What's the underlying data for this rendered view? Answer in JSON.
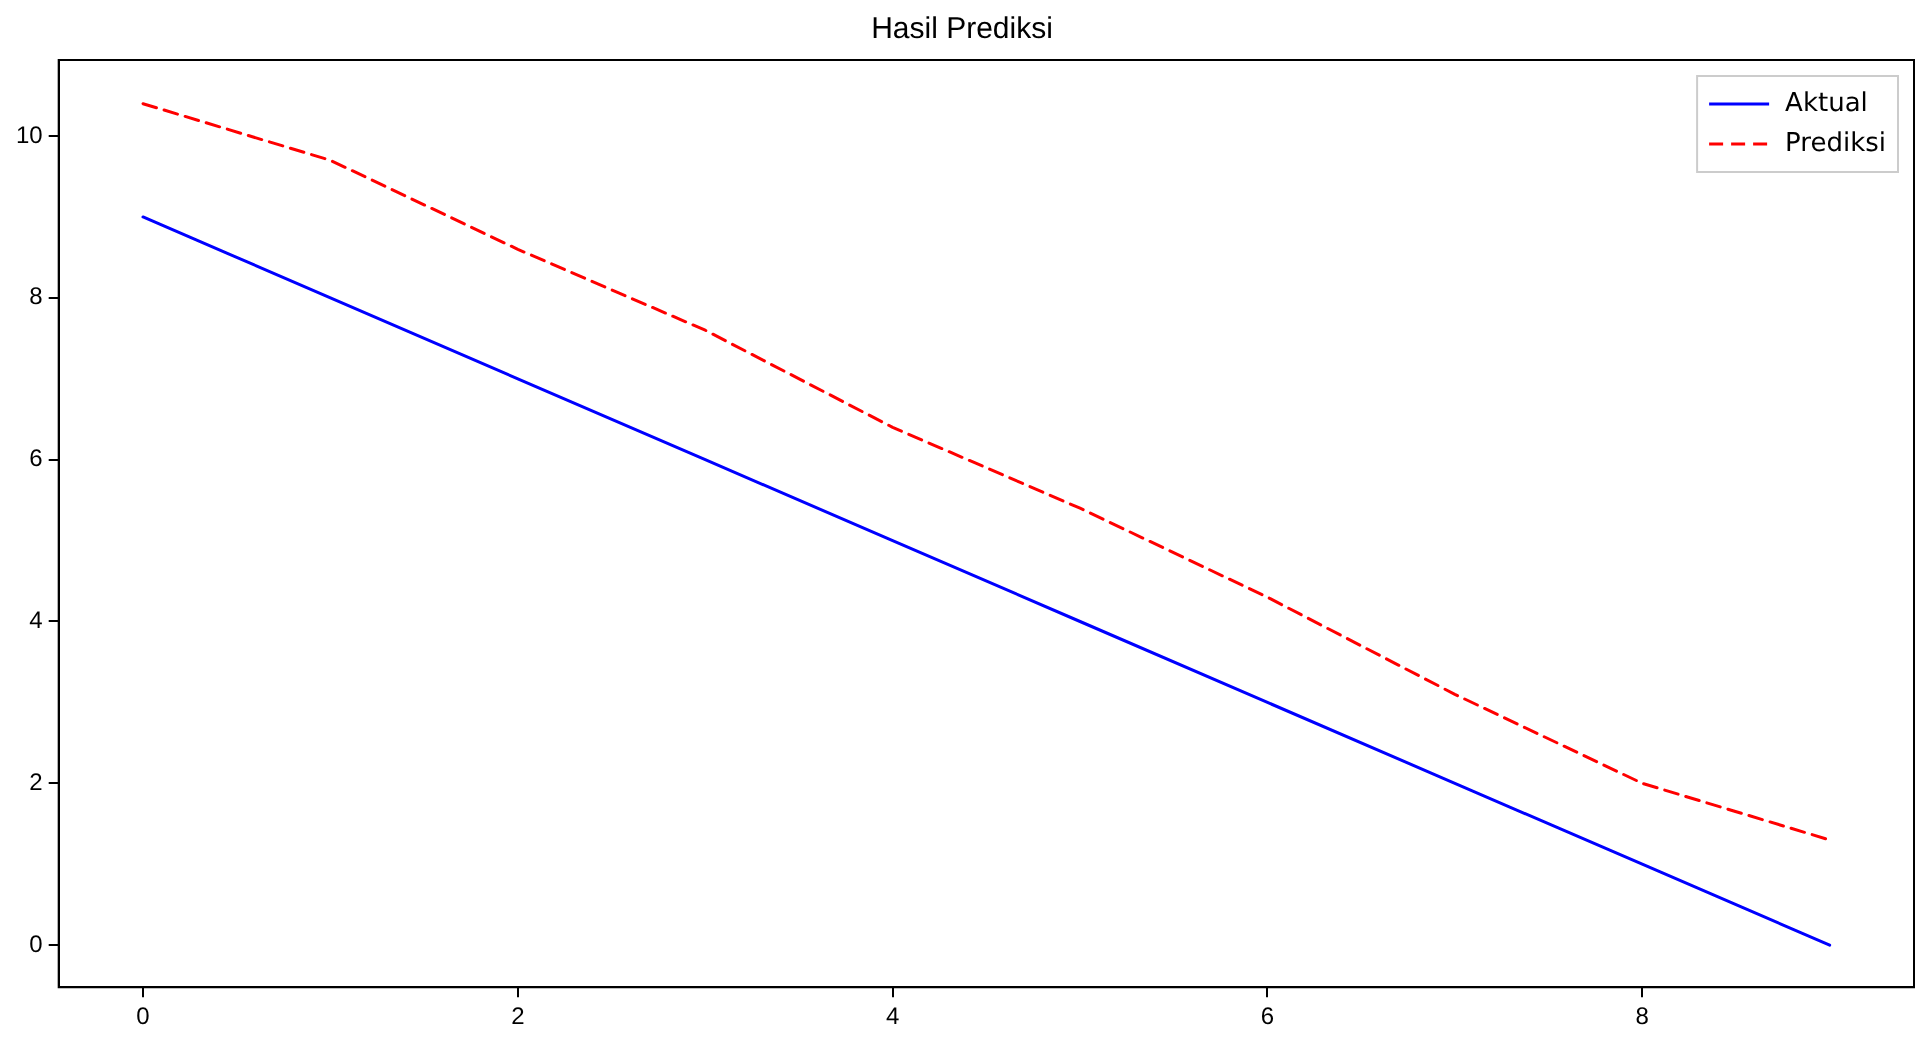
{
  "chart_data": {
    "type": "line",
    "title": "Hasil Prediksi",
    "x": [
      0,
      1,
      2,
      3,
      4,
      5,
      6,
      7,
      8,
      9
    ],
    "series": [
      {
        "name": "Aktual",
        "color": "#0000ff",
        "line_style": "solid",
        "values": [
          9,
          8,
          7,
          6,
          5,
          4,
          3,
          2,
          1,
          0
        ]
      },
      {
        "name": "Prediksi",
        "color": "#ff0000",
        "line_style": "dashed",
        "values": [
          10.4,
          9.7,
          8.6,
          7.6,
          6.4,
          5.4,
          4.3,
          3.1,
          2.0,
          1.3
        ]
      }
    ],
    "xlim": [
      -0.45,
      9.45
    ],
    "xticks": [
      0,
      2,
      4,
      6,
      8
    ],
    "ylim": [
      -0.52,
      10.94
    ],
    "yticks": [
      0,
      2,
      4,
      6,
      8,
      10
    ],
    "grid": false,
    "legend": "top right",
    "marker": "none"
  }
}
